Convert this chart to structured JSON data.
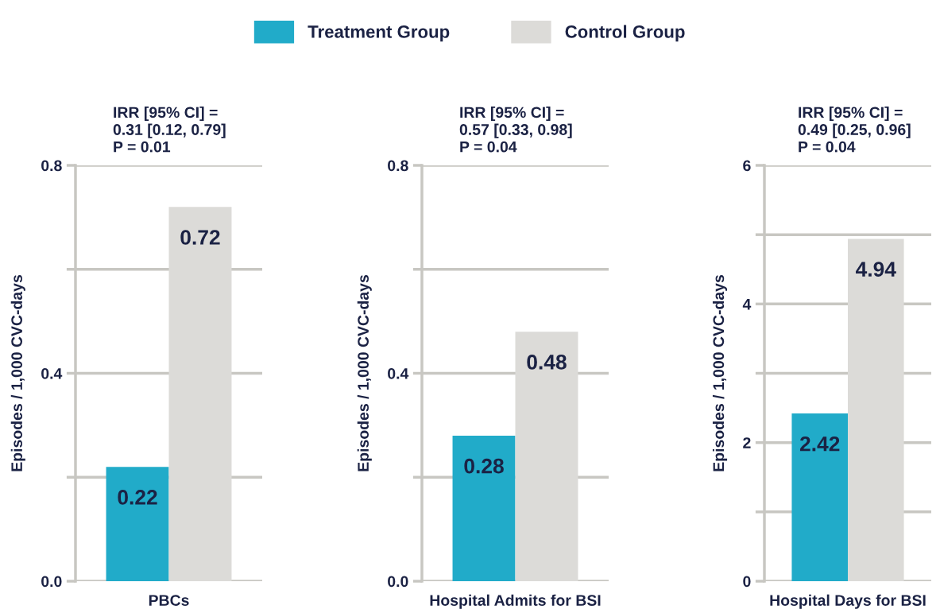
{
  "chart_data": [
    {
      "type": "bar",
      "title": "IRR [95% CI] =\n0.31 [0.12, 0.79]\nP = 0.01",
      "ylabel": "Episodes / 1,000 CVC-days",
      "categories": [
        "PBCs"
      ],
      "legend": "top",
      "series": [
        {
          "name": "Treatment Group",
          "color": "#21abc9",
          "values": [
            0.22
          ]
        },
        {
          "name": "Control Group",
          "color": "#dcdbd8",
          "values": [
            0.72
          ]
        }
      ],
      "ylim": [
        0,
        0.8
      ],
      "yticks": [
        {
          "value": 0,
          "label": "0.0"
        },
        {
          "value": 0.2,
          "label": null
        },
        0.4,
        {
          "value": 0.6,
          "label": null
        },
        0.8
      ],
      "grid": "y",
      "data_labels": true
    },
    {
      "type": "bar",
      "title": "IRR [95% CI] =\n0.57 [0.33, 0.98]\nP = 0.04",
      "ylabel": "Episodes / 1,000 CVC-days",
      "categories": [
        "Hospital Admits for BSI"
      ],
      "series": [
        {
          "color": "#21abc9",
          "values": [
            0.28
          ]
        },
        {
          "color": "#dcdbd8",
          "values": [
            0.48
          ]
        }
      ],
      "ylim": [
        0,
        0.8
      ],
      "yticks": [
        {
          "value": 0,
          "label": "0.0"
        },
        {
          "value": 0.2,
          "label": null
        },
        0.4,
        {
          "value": 0.6,
          "label": null
        },
        0.8
      ],
      "grid": "y",
      "data_labels": true
    },
    {
      "type": "bar",
      "title": "IRR [95% CI] =\n0.49 [0.25, 0.96]\nP = 0.04",
      "ylabel": "Episodes / 1,000 CVC-days",
      "categories": [
        "Hospital Days for BSI"
      ],
      "series": [
        {
          "color": "#21abc9",
          "values": [
            2.42
          ]
        },
        {
          "color": "#dcdbd8",
          "values": [
            4.94
          ]
        }
      ],
      "ylim": [
        0,
        6
      ],
      "yticks": [
        0,
        {
          "value": 1,
          "label": null
        },
        2,
        {
          "value": 3,
          "label": null
        },
        4,
        {
          "value": 5,
          "label": null
        },
        6
      ],
      "grid": "y",
      "data_labels": true
    }
  ]
}
